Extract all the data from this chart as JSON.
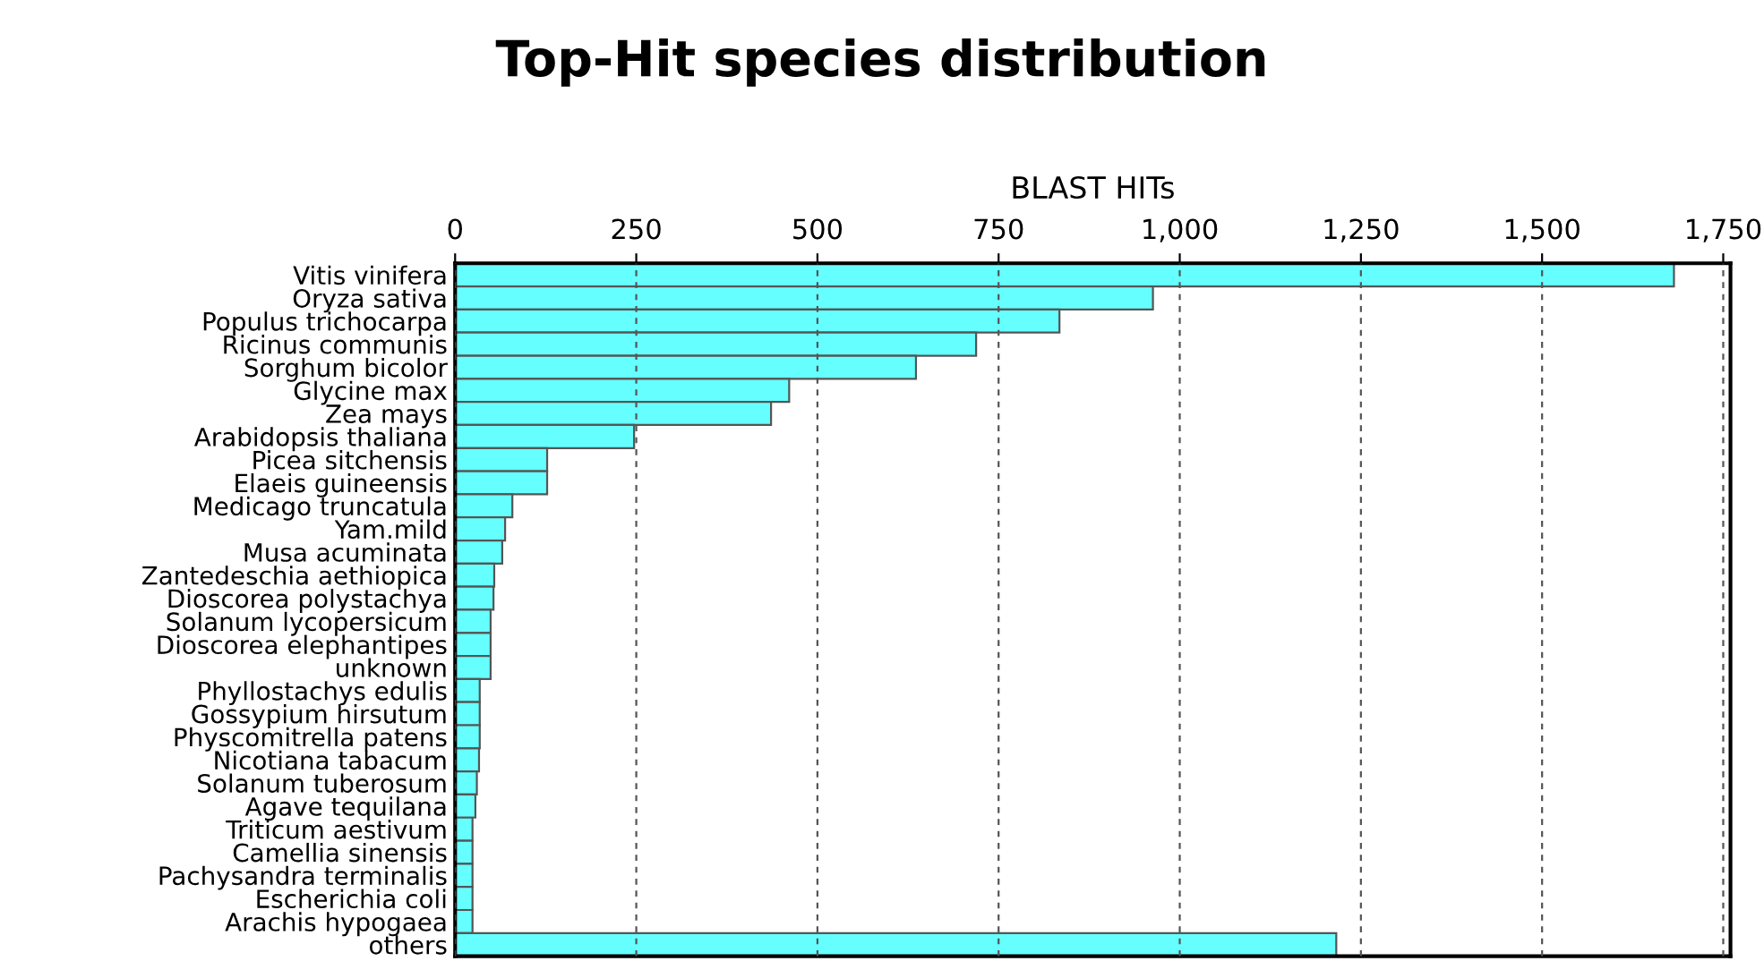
{
  "chart_data": {
    "type": "bar",
    "orientation": "horizontal",
    "title": "Top-Hit species distribution",
    "xlabel": "BLAST HITs",
    "categories": [
      "Vitis vinifera",
      "Oryza sativa",
      "Populus trichocarpa",
      "Ricinus communis",
      "Sorghum bicolor",
      "Glycine max",
      "Zea mays",
      "Arabidopsis thaliana",
      "Picea sitchensis",
      "Elaeis guineensis",
      "Medicago truncatula",
      "Yam.mild",
      "Musa acuminata",
      "Zantedeschia aethiopica",
      "Dioscorea polystachya",
      "Solanum lycopersicum",
      "Dioscorea elephantipes",
      "unknown",
      "Phyllostachys edulis",
      "Gossypium hirsutum",
      "Physcomitrella patens",
      "Nicotiana tabacum",
      "Solanum tuberosum",
      "Agave tequilana",
      "Triticum aestivum",
      "Camellia sinensis",
      "Pachysandra terminalis",
      "Escherichia coli",
      "Arachis hypogaea",
      "others"
    ],
    "values": [
      1682,
      963,
      834,
      719,
      636,
      461,
      436,
      247,
      127,
      127,
      79,
      69,
      65,
      54,
      53,
      49,
      49,
      49,
      34,
      34,
      34,
      33,
      30,
      28,
      24,
      24,
      24,
      24,
      24,
      1216
    ],
    "color": "#66ffff",
    "xlim": [
      0,
      1760
    ],
    "xticks": [
      0,
      250,
      500,
      750,
      {
        "value": 1000,
        "label": "1,000"
      },
      {
        "value": 1250,
        "label": "1,250"
      },
      {
        "value": 1500,
        "label": "1,500"
      },
      {
        "value": 1750,
        "label": "1,750"
      }
    ],
    "grid": "x"
  }
}
